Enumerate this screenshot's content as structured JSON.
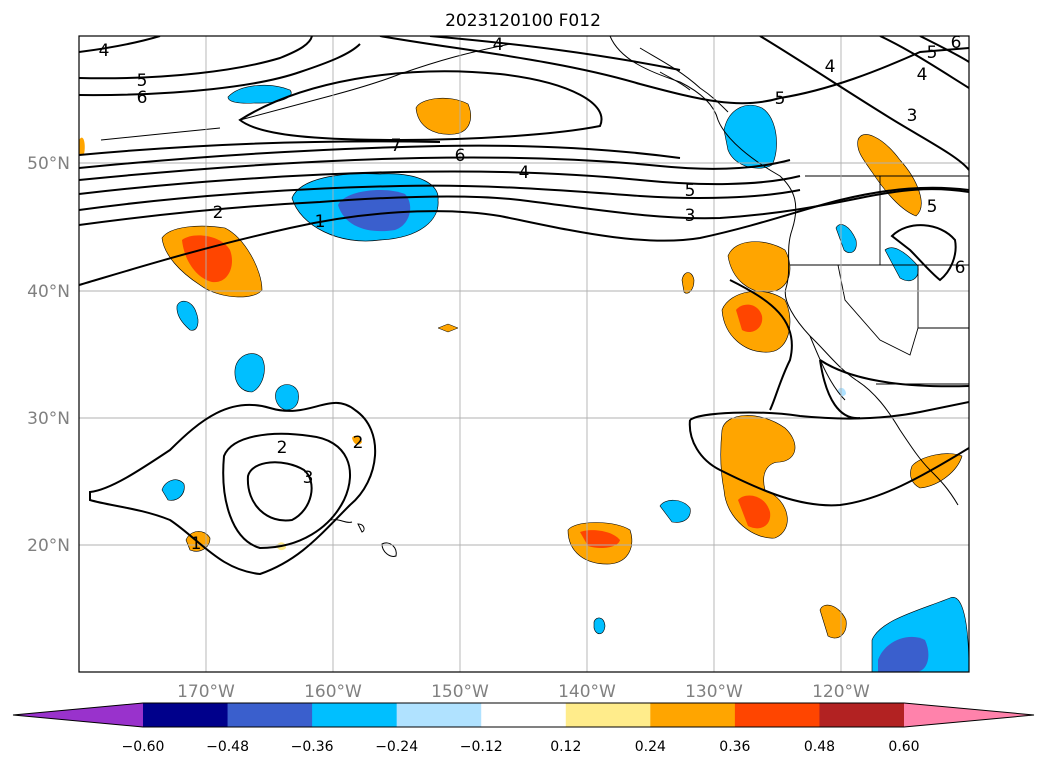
{
  "title": "2023120100 F012",
  "lon_ticks": [
    "170°W",
    "160°W",
    "150°W",
    "140°W",
    "130°W",
    "120°W"
  ],
  "lat_ticks": [
    "50°N",
    "40°N",
    "30°N",
    "20°N"
  ],
  "colorbar": {
    "colors": [
      "#9932cc",
      "#00008b",
      "#3a5fcd",
      "#00bfff",
      "#b0e2ff",
      "#ffffff",
      "#ffec8b",
      "#ffa500",
      "#ff4500",
      "#b22222",
      "#ff82ab"
    ],
    "labels": [
      "−0.60",
      "−0.48",
      "−0.36",
      "−0.24",
      "−0.12",
      "0.12",
      "0.24",
      "0.36",
      "0.48",
      "0.60"
    ]
  },
  "contour_labels": [
    "4",
    "5",
    "6",
    "4",
    "7",
    "6",
    "4",
    "5",
    "3",
    "2",
    "1",
    "4",
    "5",
    "4",
    "3",
    "5",
    "6",
    "5",
    "2",
    "3",
    "2",
    "1",
    "6"
  ]
}
